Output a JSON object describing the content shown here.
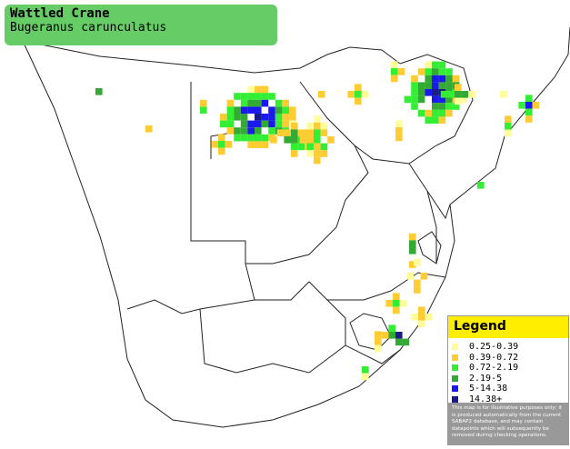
{
  "header": {
    "title": "Wattled Crane",
    "subtitle": "Bugeranus carunculatus"
  },
  "legend": {
    "title": "Legend",
    "items": [
      {
        "label": "0.25-0.39",
        "color": "#ffff99"
      },
      {
        "label": "0.39-0.72",
        "color": "#ffcc33"
      },
      {
        "label": "0.72-2.19",
        "color": "#33ee33"
      },
      {
        "label": "2.19-5",
        "color": "#33aa33"
      },
      {
        "label": "5-14.38",
        "color": "#1a1aee"
      },
      {
        "label": "14.38+",
        "color": "#1a1a88"
      }
    ],
    "note": "This map is for illustrative purposes only; it is produced automatically from the current SABAP2 database, and may contain datapoints which will subsequently be removed during checking operations."
  }
}
